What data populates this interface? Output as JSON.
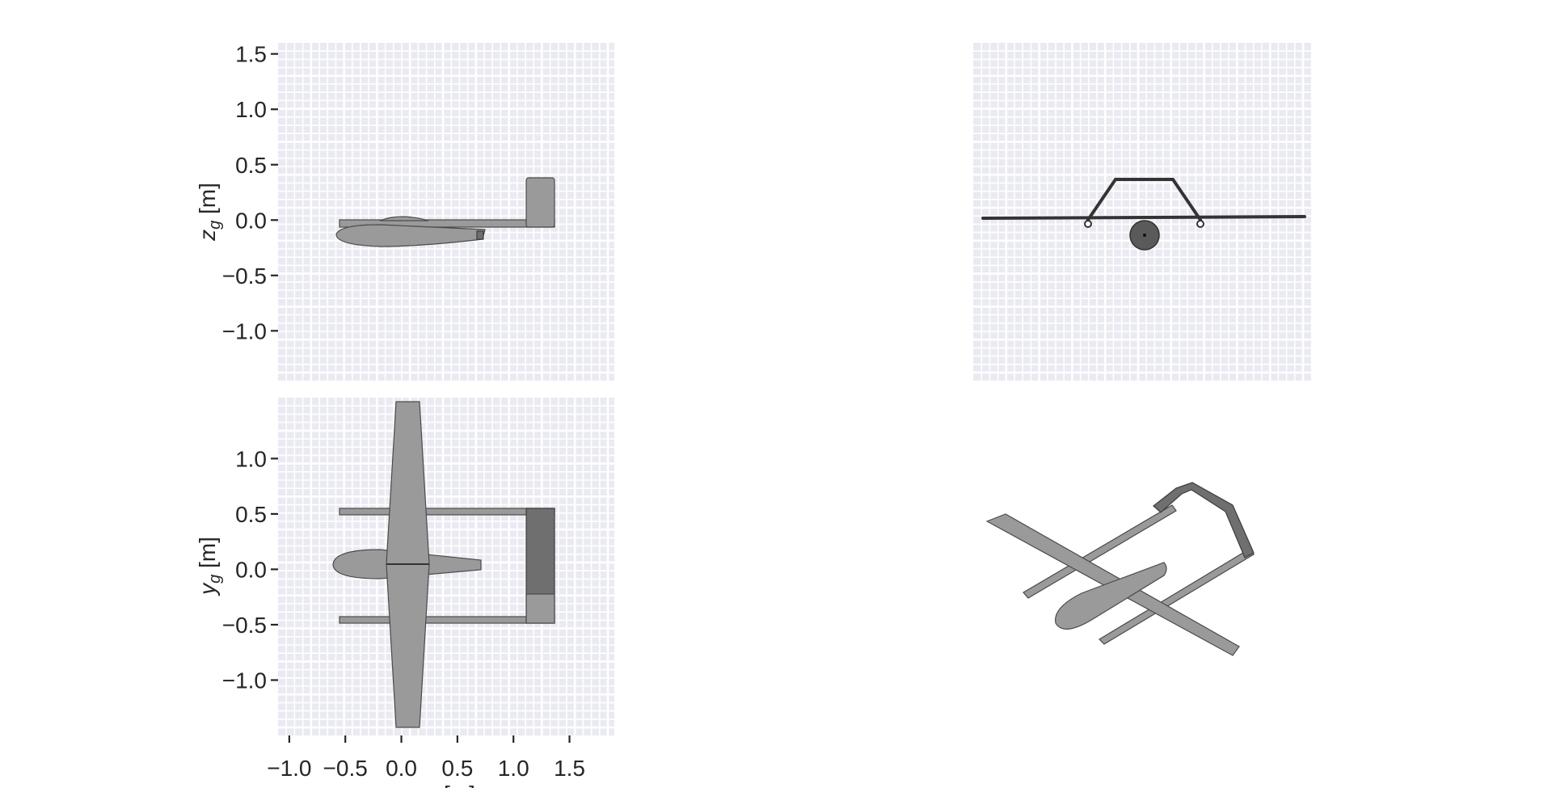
{
  "chart_data": [
    {
      "type": "scatter",
      "panel": "side-view",
      "xlabel": "",
      "ylabel": "z_g [m]",
      "ylabel_main": "z",
      "ylabel_sub": "g",
      "ylabel_unit": " [m]",
      "xlim": [
        -1.1,
        1.9
      ],
      "ylim": [
        -1.45,
        1.6
      ],
      "yticks": [
        1.5,
        1.0,
        0.5,
        0.0,
        -0.5,
        -1.0
      ],
      "ytick_labels": [
        "1.5",
        "1.0",
        "0.5",
        "0.0",
        "−0.5",
        "−1.0"
      ],
      "grid": true
    },
    {
      "type": "scatter",
      "panel": "front-view",
      "xlabel": "",
      "ylabel": "",
      "grid": true
    },
    {
      "type": "scatter",
      "panel": "top-view",
      "xlabel": "x_g [m]",
      "xlabel_main": "x",
      "xlabel_sub": "g",
      "xlabel_unit": " [m]",
      "ylabel": "y_g [m]",
      "ylabel_main": "y",
      "ylabel_sub": "g",
      "ylabel_unit": " [m]",
      "xlim": [
        -1.1,
        1.9
      ],
      "ylim": [
        -1.5,
        1.55
      ],
      "xticks": [
        -1.0,
        -0.5,
        0.0,
        0.5,
        1.0,
        1.5
      ],
      "xtick_labels": [
        "−1.0",
        "−0.5",
        "0.0",
        "0.5",
        "1.0",
        "1.5"
      ],
      "yticks": [
        1.0,
        0.5,
        0.0,
        -0.5,
        -1.0
      ],
      "ytick_labels": [
        "1.0",
        "0.5",
        "0.0",
        "−0.5",
        "−1.0"
      ],
      "grid": true
    },
    {
      "type": "scatter",
      "panel": "isometric-view",
      "grid": false
    }
  ],
  "colors": {
    "panel_background": "#eaeaf2",
    "grid": "#ffffff",
    "aircraft_fill": "#9a9a9a",
    "aircraft_edge": "#4a4a4a"
  }
}
